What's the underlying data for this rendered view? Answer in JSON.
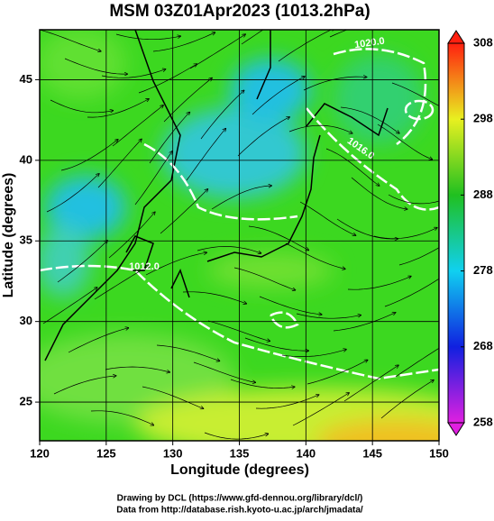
{
  "chart_data": {
    "type": "heatmap",
    "title": "MSM 03Z01Apr2023 (1013.2hPa)",
    "x_label": "Longitude (degrees)",
    "y_label": "Latitude  (degrees)",
    "xlim": [
      120,
      150
    ],
    "ylim": [
      22.6,
      48.1
    ],
    "xticks": [
      120,
      125,
      130,
      135,
      140,
      145,
      150
    ],
    "yticks": [
      25,
      30,
      35,
      40,
      45
    ],
    "grid": true,
    "colorbar": {
      "lim": [
        258,
        308
      ],
      "ticks": [
        258,
        268,
        278,
        288,
        298,
        308
      ],
      "colors": [
        "#e020e0",
        "#1020e0",
        "#10d0f0",
        "#20c020",
        "#e8f020",
        "#ff2010"
      ]
    },
    "annotations": [
      "1020.0",
      "1016.0",
      "1012.0"
    ],
    "footer": [
      "Drawing by DCL (https://www.gfd-dennou.org/library/dcl/)",
      "Data from http://database.rish.kyoto-u.ac.jp/arch/jmadata/"
    ]
  }
}
